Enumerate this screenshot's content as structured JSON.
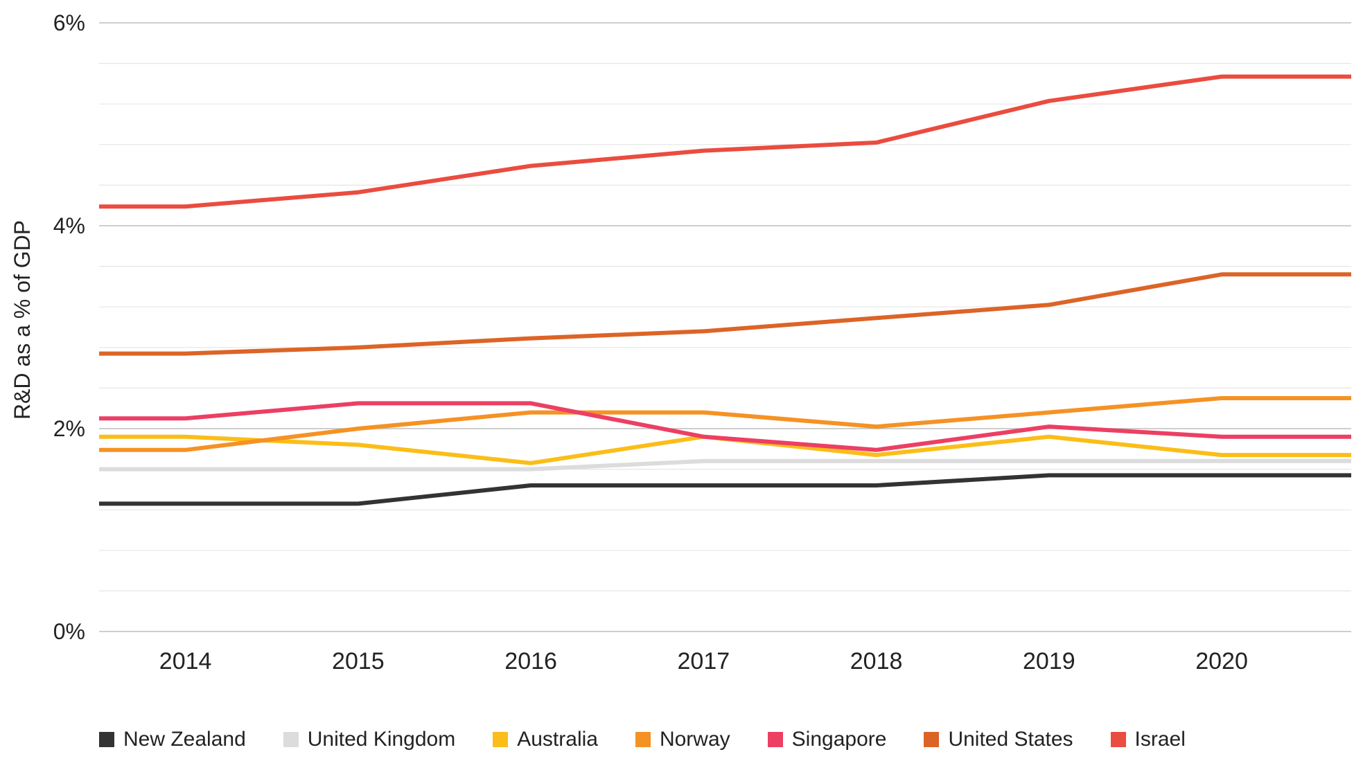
{
  "chart_data": {
    "type": "line",
    "ylabel": "R&D as a % of GDP",
    "xlabel": "",
    "categories": [
      "2014",
      "2015",
      "2016",
      "2017",
      "2018",
      "2019",
      "2020"
    ],
    "ylim": [
      0,
      6
    ],
    "yticks": [
      {
        "value": 0,
        "label": "0%"
      },
      {
        "value": 2,
        "label": "2%"
      },
      {
        "value": 4,
        "label": "4%"
      },
      {
        "value": 6,
        "label": "6%"
      }
    ],
    "x_start": 2013.5,
    "x_end": 2020.75,
    "minor_grid_step": 0.4,
    "series": [
      {
        "name": "New Zealand",
        "color": "#333333",
        "x": [
          2013.5,
          2014,
          2015,
          2016,
          2017,
          2018,
          2019,
          2020,
          2020.75
        ],
        "values": [
          1.26,
          1.26,
          1.26,
          1.44,
          1.44,
          1.44,
          1.54,
          1.54,
          1.54
        ]
      },
      {
        "name": "United Kingdom",
        "color": "#dcdcdc",
        "x": [
          2013.5,
          2014,
          2015,
          2016,
          2017,
          2018,
          2019,
          2020,
          2020.75
        ],
        "values": [
          1.6,
          1.6,
          1.6,
          1.6,
          1.68,
          1.68,
          1.68,
          1.68,
          1.68
        ]
      },
      {
        "name": "Australia",
        "color": "#fbbd18",
        "x": [
          2013.5,
          2014,
          2015,
          2016,
          2017,
          2018,
          2019,
          2020,
          2020.75
        ],
        "values": [
          1.92,
          1.92,
          1.84,
          1.66,
          1.92,
          1.74,
          1.92,
          1.74,
          1.74
        ]
      },
      {
        "name": "Norway",
        "color": "#f59224",
        "x": [
          2013.5,
          2014,
          2015,
          2016,
          2017,
          2018,
          2019,
          2020,
          2020.75
        ],
        "values": [
          1.79,
          1.79,
          2.0,
          2.16,
          2.16,
          2.02,
          2.16,
          2.3,
          2.3
        ]
      },
      {
        "name": "Singapore",
        "color": "#ec3f63",
        "x": [
          2013.5,
          2014,
          2015,
          2016,
          2017,
          2018,
          2019,
          2020,
          2020.75
        ],
        "values": [
          2.1,
          2.1,
          2.25,
          2.25,
          1.92,
          1.79,
          2.02,
          1.92,
          1.92
        ]
      },
      {
        "name": "United States",
        "color": "#dc6427",
        "x": [
          2013.5,
          2014,
          2015,
          2016,
          2017,
          2018,
          2019,
          2020,
          2020.75
        ],
        "values": [
          2.74,
          2.74,
          2.8,
          2.89,
          2.96,
          3.09,
          3.22,
          3.52,
          3.52
        ]
      },
      {
        "name": "Israel",
        "color": "#ea4c3f",
        "x": [
          2013.5,
          2014,
          2015,
          2016,
          2017,
          2018,
          2019,
          2020,
          2020.75
        ],
        "values": [
          4.19,
          4.19,
          4.33,
          4.59,
          4.74,
          4.82,
          5.23,
          5.47,
          5.47
        ]
      }
    ]
  }
}
